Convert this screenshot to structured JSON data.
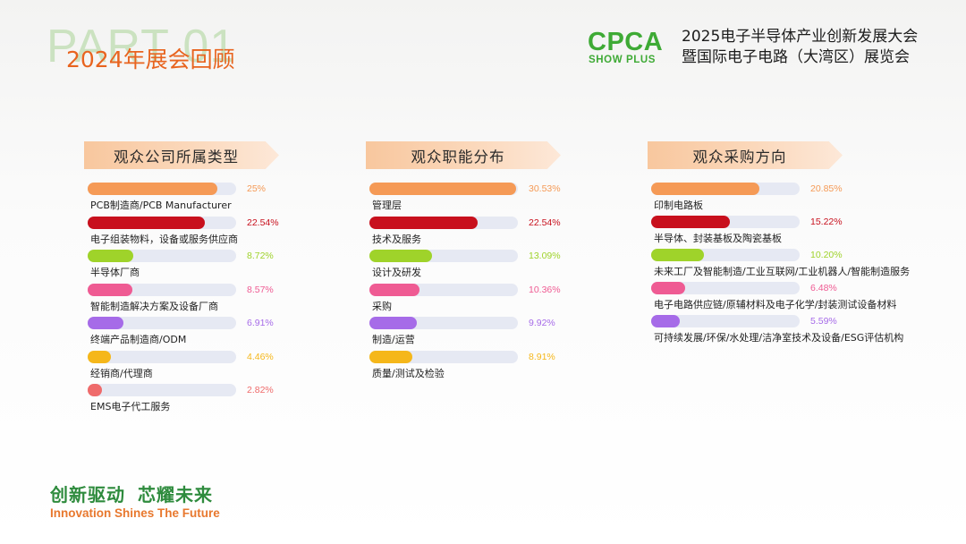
{
  "header": {
    "part_label": "PART 01",
    "section_title": "2024年展会回顾",
    "logo_main": "CPCA",
    "logo_sub": "SHOW PLUS",
    "event_line1": "2025电子半导体产业创新发展大会",
    "event_line2": "暨国际电子电路（大湾区）展览会"
  },
  "colors": {
    "orange": "#f59a56",
    "red": "#c8101d",
    "green": "#9fd32a",
    "pink": "#ef5b93",
    "purple": "#a66be8",
    "yellow": "#f5b71a",
    "coral": "#ef6b6b",
    "track": "#e6e9f3"
  },
  "footer": {
    "slogan_cn_part1": "创新驱动",
    "slogan_cn_part2": "芯耀未来",
    "slogan_en": "Innovation Shines The Future"
  },
  "chart_data": [
    {
      "type": "bar",
      "title": "观众公司所属类型",
      "categories": [
        "PCB制造商/PCB Manufacturer",
        "电子组装物料，设备或服务供应商",
        "半导体厂商",
        "智能制造解决方案及设备厂商",
        "终端产品制造商/ODM",
        "经销商/代理商",
        "EMS电子代工服务"
      ],
      "values": [
        25,
        22.54,
        8.72,
        8.57,
        6.91,
        4.46,
        2.82
      ],
      "value_labels": [
        "25%",
        "22.54%",
        "8.72%",
        "8.57%",
        "6.91%",
        "4.46%",
        "2.82%"
      ],
      "colors": [
        "orange",
        "red",
        "green",
        "pink",
        "purple",
        "yellow",
        "coral"
      ]
    },
    {
      "type": "bar",
      "title": "观众职能分布",
      "categories": [
        "管理层",
        "技术及服务",
        "设计及研发",
        "采购",
        "制造/运营",
        "质量/测试及检验"
      ],
      "values": [
        30.53,
        22.54,
        13.09,
        10.36,
        9.92,
        8.91
      ],
      "value_labels": [
        "30.53%",
        "22.54%",
        "13.09%",
        "10.36%",
        "9.92%",
        "8.91%"
      ],
      "colors": [
        "orange",
        "red",
        "green",
        "pink",
        "purple",
        "yellow"
      ]
    },
    {
      "type": "bar",
      "title": "观众采购方向",
      "categories": [
        "印制电路板",
        "半导体、封装基板及陶瓷基板",
        "未来工厂及智能制造/工业互联网/工业机器人/智能制造服务",
        "电子电路供应链/原辅材料及电子化学/封装测试设备材料",
        "可持续发展/环保/水处理/洁净室技术及设备/ESG评估机构"
      ],
      "values": [
        20.85,
        15.22,
        10.2,
        6.48,
        5.59
      ],
      "value_labels": [
        "20.85%",
        "15.22%",
        "10.20%",
        "6.48%",
        "5.59%"
      ],
      "colors": [
        "orange",
        "red",
        "green",
        "pink",
        "purple"
      ]
    }
  ]
}
